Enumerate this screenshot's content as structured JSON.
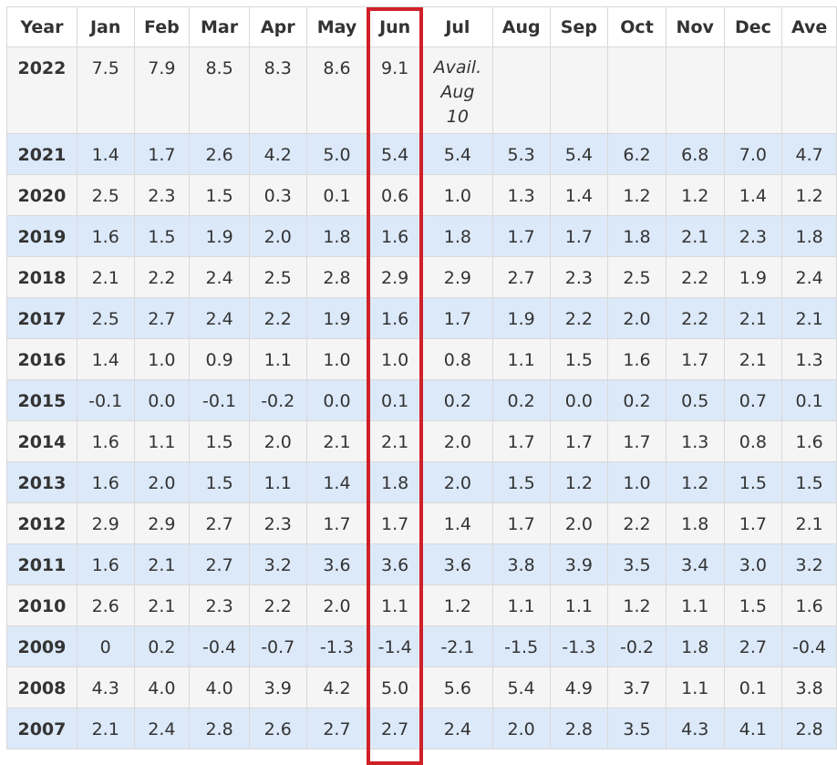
{
  "chart_data": {
    "type": "table",
    "columns": [
      "Year",
      "Jan",
      "Feb",
      "Mar",
      "Apr",
      "May",
      "Jun",
      "Jul",
      "Aug",
      "Sep",
      "Oct",
      "Nov",
      "Dec",
      "Ave"
    ],
    "highlighted_column": "Jun",
    "highlight_color": "#d0202a",
    "row_colors": [
      "#f5f5f5",
      "#dce9f9"
    ],
    "rows": [
      [
        "2022",
        "7.5",
        "7.9",
        "8.5",
        "8.3",
        "8.6",
        "9.1",
        "Avail. Aug 10",
        "",
        "",
        "",
        "",
        "",
        ""
      ],
      [
        "2021",
        "1.4",
        "1.7",
        "2.6",
        "4.2",
        "5.0",
        "5.4",
        "5.4",
        "5.3",
        "5.4",
        "6.2",
        "6.8",
        "7.0",
        "4.7"
      ],
      [
        "2020",
        "2.5",
        "2.3",
        "1.5",
        "0.3",
        "0.1",
        "0.6",
        "1.0",
        "1.3",
        "1.4",
        "1.2",
        "1.2",
        "1.4",
        "1.2"
      ],
      [
        "2019",
        "1.6",
        "1.5",
        "1.9",
        "2.0",
        "1.8",
        "1.6",
        "1.8",
        "1.7",
        "1.7",
        "1.8",
        "2.1",
        "2.3",
        "1.8"
      ],
      [
        "2018",
        "2.1",
        "2.2",
        "2.4",
        "2.5",
        "2.8",
        "2.9",
        "2.9",
        "2.7",
        "2.3",
        "2.5",
        "2.2",
        "1.9",
        "2.4"
      ],
      [
        "2017",
        "2.5",
        "2.7",
        "2.4",
        "2.2",
        "1.9",
        "1.6",
        "1.7",
        "1.9",
        "2.2",
        "2.0",
        "2.2",
        "2.1",
        "2.1"
      ],
      [
        "2016",
        "1.4",
        "1.0",
        "0.9",
        "1.1",
        "1.0",
        "1.0",
        "0.8",
        "1.1",
        "1.5",
        "1.6",
        "1.7",
        "2.1",
        "1.3"
      ],
      [
        "2015",
        "-0.1",
        "0.0",
        "-0.1",
        "-0.2",
        "0.0",
        "0.1",
        "0.2",
        "0.2",
        "0.0",
        "0.2",
        "0.5",
        "0.7",
        "0.1"
      ],
      [
        "2014",
        "1.6",
        "1.1",
        "1.5",
        "2.0",
        "2.1",
        "2.1",
        "2.0",
        "1.7",
        "1.7",
        "1.7",
        "1.3",
        "0.8",
        "1.6"
      ],
      [
        "2013",
        "1.6",
        "2.0",
        "1.5",
        "1.1",
        "1.4",
        "1.8",
        "2.0",
        "1.5",
        "1.2",
        "1.0",
        "1.2",
        "1.5",
        "1.5"
      ],
      [
        "2012",
        "2.9",
        "2.9",
        "2.7",
        "2.3",
        "1.7",
        "1.7",
        "1.4",
        "1.7",
        "2.0",
        "2.2",
        "1.8",
        "1.7",
        "2.1"
      ],
      [
        "2011",
        "1.6",
        "2.1",
        "2.7",
        "3.2",
        "3.6",
        "3.6",
        "3.6",
        "3.8",
        "3.9",
        "3.5",
        "3.4",
        "3.0",
        "3.2"
      ],
      [
        "2010",
        "2.6",
        "2.1",
        "2.3",
        "2.2",
        "2.0",
        "1.1",
        "1.2",
        "1.1",
        "1.1",
        "1.2",
        "1.1",
        "1.5",
        "1.6"
      ],
      [
        "2009",
        "0",
        "0.2",
        "-0.4",
        "-0.7",
        "-1.3",
        "-1.4",
        "-2.1",
        "-1.5",
        "-1.3",
        "-0.2",
        "1.8",
        "2.7",
        "-0.4"
      ],
      [
        "2008",
        "4.3",
        "4.0",
        "4.0",
        "3.9",
        "4.2",
        "5.0",
        "5.6",
        "5.4",
        "4.9",
        "3.7",
        "1.1",
        "0.1",
        "3.8"
      ],
      [
        "2007",
        "2.1",
        "2.4",
        "2.8",
        "2.6",
        "2.7",
        "2.7",
        "2.4",
        "2.0",
        "2.8",
        "3.5",
        "4.3",
        "4.1",
        "2.8"
      ]
    ]
  }
}
